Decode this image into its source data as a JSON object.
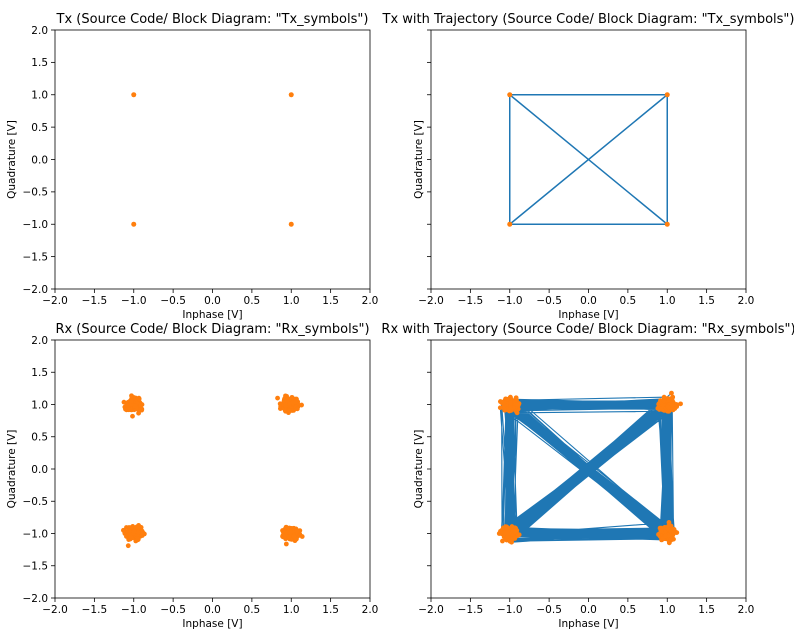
{
  "chart_data": [
    {
      "type": "scatter",
      "title": "Tx (Source Code/ Block Diagram: \"Tx_symbols\")",
      "xlabel": "Inphase [V]",
      "ylabel": "Quadrature [V]",
      "xlim": [
        -2.0,
        2.0
      ],
      "ylim": [
        -2.0,
        2.0
      ],
      "xticks": [
        "−2.0",
        "−1.5",
        "−1.0",
        "−0.5",
        "0.0",
        "0.5",
        "1.0",
        "1.5",
        "2.0"
      ],
      "yticks": [
        "−2.0",
        "−1.5",
        "−1.0",
        "−0.5",
        "0.0",
        "0.5",
        "1.0",
        "1.5",
        "2.0"
      ],
      "show_yticklabels": true,
      "grid": false,
      "trajectory": false,
      "noisy": false,
      "symbols": [
        [
          -1,
          1
        ],
        [
          1,
          1
        ],
        [
          -1,
          -1
        ],
        [
          1,
          -1
        ]
      ],
      "colors": {
        "points": "#ff7f0e",
        "trajectory": "#1f77b4"
      }
    },
    {
      "type": "line",
      "title": "Tx with Trajectory (Source Code/ Block Diagram: \"Tx_symbols\")",
      "xlabel": "Inphase [V]",
      "ylabel": "Quadrature [V]",
      "xlim": [
        -2.0,
        2.0
      ],
      "ylim": [
        -2.0,
        2.0
      ],
      "xticks": [
        "−2.0",
        "−1.5",
        "−1.0",
        "−0.5",
        "0.0",
        "0.5",
        "1.0",
        "1.5",
        "2.0"
      ],
      "yticks": [],
      "show_yticklabels": false,
      "grid": false,
      "trajectory": true,
      "noisy": false,
      "symbols": [
        [
          -1,
          1
        ],
        [
          1,
          1
        ],
        [
          -1,
          -1
        ],
        [
          1,
          -1
        ]
      ],
      "colors": {
        "points": "#ff7f0e",
        "trajectory": "#1f77b4"
      }
    },
    {
      "type": "scatter",
      "title": "Rx (Source Code/ Block Diagram: \"Rx_symbols\")",
      "xlabel": "Inphase [V]",
      "ylabel": "Quadrature [V]",
      "xlim": [
        -2.0,
        2.0
      ],
      "ylim": [
        -2.0,
        2.0
      ],
      "xticks": [
        "−2.0",
        "−1.5",
        "−1.0",
        "−0.5",
        "0.0",
        "0.5",
        "1.0",
        "1.5",
        "2.0"
      ],
      "yticks": [
        "−2.0",
        "−1.5",
        "−1.0",
        "−0.5",
        "0.0",
        "0.5",
        "1.0",
        "1.5",
        "2.0"
      ],
      "show_yticklabels": true,
      "grid": false,
      "trajectory": false,
      "noisy": true,
      "noise_std": 0.045,
      "symbols": [
        [
          -1,
          1
        ],
        [
          1,
          1
        ],
        [
          -1,
          -1
        ],
        [
          1,
          -1
        ]
      ],
      "colors": {
        "points": "#ff7f0e",
        "trajectory": "#1f77b4"
      }
    },
    {
      "type": "line",
      "title": "Rx with Trajectory (Source Code/ Block Diagram: \"Rx_symbols\")",
      "xlabel": "Inphase [V]",
      "ylabel": "Quadrature [V]",
      "xlim": [
        -2.0,
        2.0
      ],
      "ylim": [
        -2.0,
        2.0
      ],
      "xticks": [
        "−2.0",
        "−1.5",
        "−1.0",
        "−0.5",
        "0.0",
        "0.5",
        "1.0",
        "1.5",
        "2.0"
      ],
      "yticks": [],
      "show_yticklabels": false,
      "grid": false,
      "trajectory": true,
      "noisy": true,
      "noise_std": 0.045,
      "symbols": [
        [
          -1,
          1
        ],
        [
          1,
          1
        ],
        [
          -1,
          -1
        ],
        [
          1,
          -1
        ]
      ],
      "colors": {
        "points": "#ff7f0e",
        "trajectory": "#1f77b4"
      }
    }
  ]
}
